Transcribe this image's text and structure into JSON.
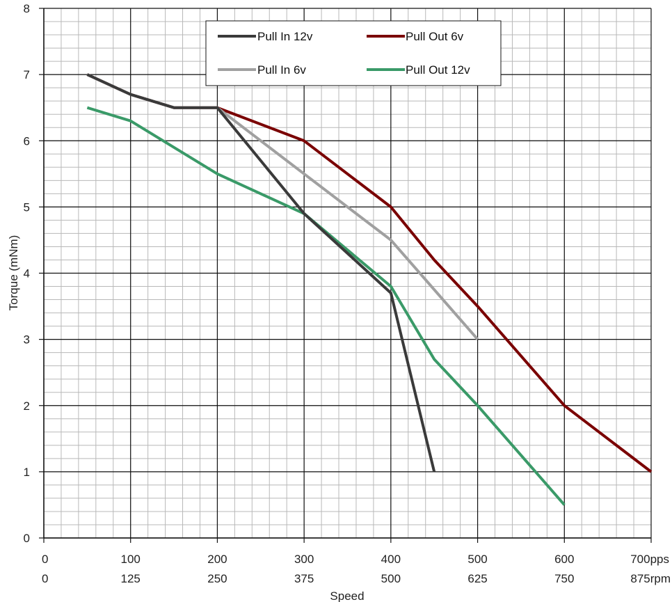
{
  "chart_data": {
    "type": "line",
    "title": "",
    "xlabel": "Speed",
    "ylabel": "Torque (mNm)",
    "xlim": [
      0,
      700
    ],
    "ylim": [
      0,
      8
    ],
    "grid": true,
    "legend_position": "top-center",
    "x_ticks_pps": [
      "0",
      "100",
      "200",
      "300",
      "400",
      "500",
      "600",
      "700pps"
    ],
    "x_ticks_rpm": [
      "0",
      "125",
      "250",
      "375",
      "500",
      "625",
      "750",
      "875rpm"
    ],
    "y_ticks": [
      "0",
      "1",
      "2",
      "3",
      "4",
      "5",
      "6",
      "7",
      "8"
    ],
    "series": [
      {
        "name": "Pull In 12v",
        "color": "#3a3a3a",
        "x": [
          50,
          100,
          150,
          200,
          300,
          400,
          450
        ],
        "y": [
          7.0,
          6.7,
          6.5,
          6.5,
          4.9,
          3.7,
          1.0
        ]
      },
      {
        "name": "Pull Out 6v",
        "color": "#7a0000",
        "x": [
          50,
          100,
          150,
          200,
          300,
          400,
          450,
          500,
          600,
          700
        ],
        "y": [
          7.0,
          6.7,
          6.5,
          6.5,
          6.0,
          5.0,
          4.2,
          3.5,
          2.0,
          1.0
        ]
      },
      {
        "name": "Pull In 6v",
        "color": "#a0a0a0",
        "x": [
          50,
          100,
          150,
          200,
          300,
          400,
          500
        ],
        "y": [
          7.0,
          6.7,
          6.5,
          6.5,
          5.5,
          4.5,
          3.0
        ]
      },
      {
        "name": "Pull Out 12v",
        "color": "#3a9a68",
        "x": [
          50,
          100,
          150,
          200,
          300,
          400,
          450,
          500,
          600
        ],
        "y": [
          6.5,
          6.3,
          5.9,
          5.5,
          4.9,
          3.8,
          2.7,
          2.0,
          0.5
        ]
      }
    ]
  }
}
